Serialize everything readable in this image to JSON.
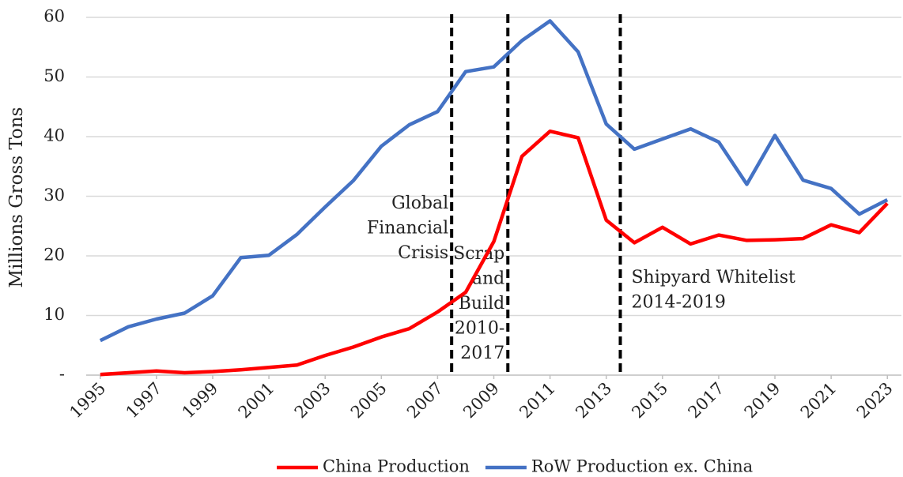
{
  "chart_data": {
    "type": "line",
    "y_label": "Millions Gross Tons",
    "x": [
      1995,
      1996,
      1997,
      1998,
      1999,
      2000,
      2001,
      2002,
      2003,
      2004,
      2005,
      2006,
      2007,
      2008,
      2009,
      2010,
      2011,
      2012,
      2013,
      2014,
      2015,
      2016,
      2017,
      2018,
      2019,
      2020,
      2021,
      2022,
      2023
    ],
    "series": [
      {
        "name": "China Production",
        "color": "#ff0000",
        "values": [
          0.1,
          0.4,
          0.7,
          0.4,
          0.6,
          0.9,
          1.3,
          1.7,
          3.3,
          4.7,
          6.4,
          7.8,
          10.6,
          13.9,
          22.4,
          36.7,
          40.9,
          39.8,
          26.0,
          22.2,
          24.8,
          22.0,
          23.5,
          22.6,
          22.7,
          22.9,
          25.2,
          23.9,
          28.8
        ]
      },
      {
        "name": "RoW Production ex. China",
        "color": "#4472c4",
        "values": [
          5.8,
          8.1,
          9.4,
          10.4,
          13.3,
          19.7,
          20.1,
          23.6,
          28.2,
          32.6,
          38.4,
          42.0,
          44.2,
          50.9,
          51.7,
          56.1,
          59.4,
          54.2,
          42.1,
          37.9,
          39.6,
          41.3,
          39.1,
          32.0,
          40.2,
          32.7,
          31.3,
          27.0,
          29.4
        ]
      }
    ],
    "xlim": [
      1994.5,
      2023.5
    ],
    "xticks": [
      1995,
      1997,
      1999,
      2001,
      2003,
      2005,
      2007,
      2009,
      2011,
      2013,
      2015,
      2017,
      2019,
      2021,
      2023
    ],
    "ylim": [
      0,
      60
    ],
    "yticks": [
      {
        "value": 0,
        "label": "-"
      },
      10,
      20,
      30,
      40,
      50,
      60
    ],
    "grid": true,
    "legend": "bottom",
    "annotations": [
      {
        "x": 2007.5,
        "lines": [
          "Global",
          "Financial",
          "Crisis"
        ],
        "anchor": "end"
      },
      {
        "x": 2009.5,
        "lines": [
          "Scrap",
          "and",
          "Build",
          "2010-",
          "2017"
        ],
        "anchor": "end"
      },
      {
        "x": 2013.5,
        "lines": [
          "Shipyard Whitelist",
          "2014-2019"
        ],
        "anchor": "start"
      }
    ]
  }
}
